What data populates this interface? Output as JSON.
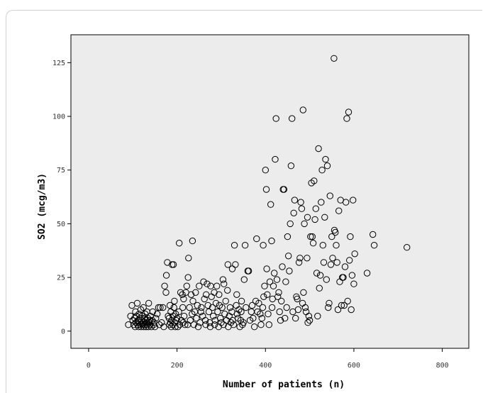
{
  "chart_data": {
    "type": "scatter",
    "xlabel": "Number of patients (n)",
    "ylabel": "SO2 (mcg/m3)",
    "xlim": [
      -40,
      860
    ],
    "ylim": [
      -8,
      138
    ],
    "xticks": [
      0,
      200,
      400,
      600,
      800
    ],
    "yticks": [
      0,
      25,
      50,
      75,
      100,
      125
    ],
    "grid": false,
    "plot_background": "#ececec",
    "marker_color": "#000000",
    "marker": "hollow-circle",
    "points": [
      [
        90,
        3
      ],
      [
        95,
        7
      ],
      [
        98,
        12
      ],
      [
        100,
        5
      ],
      [
        102,
        3
      ],
      [
        104,
        6
      ],
      [
        105,
        2
      ],
      [
        106,
        9
      ],
      [
        107,
        4
      ],
      [
        108,
        7
      ],
      [
        110,
        13
      ],
      [
        111,
        3
      ],
      [
        112,
        5
      ],
      [
        113,
        2
      ],
      [
        114,
        8
      ],
      [
        115,
        4
      ],
      [
        116,
        6
      ],
      [
        117,
        3
      ],
      [
        118,
        10
      ],
      [
        119,
        2
      ],
      [
        120,
        5
      ],
      [
        121,
        7
      ],
      [
        122,
        3
      ],
      [
        123,
        4
      ],
      [
        124,
        11
      ],
      [
        125,
        2
      ],
      [
        126,
        6
      ],
      [
        127,
        3
      ],
      [
        128,
        8
      ],
      [
        129,
        5
      ],
      [
        130,
        2
      ],
      [
        131,
        4
      ],
      [
        132,
        9
      ],
      [
        133,
        3
      ],
      [
        134,
        6
      ],
      [
        135,
        2
      ],
      [
        136,
        13
      ],
      [
        137,
        4
      ],
      [
        138,
        5
      ],
      [
        139,
        3
      ],
      [
        140,
        7
      ],
      [
        142,
        2
      ],
      [
        144,
        5
      ],
      [
        145,
        9
      ],
      [
        147,
        3
      ],
      [
        148,
        4
      ],
      [
        150,
        2
      ],
      [
        152,
        6
      ],
      [
        155,
        8
      ],
      [
        158,
        11
      ],
      [
        160,
        3
      ],
      [
        162,
        11
      ],
      [
        165,
        4
      ],
      [
        168,
        11
      ],
      [
        170,
        2
      ],
      [
        172,
        21
      ],
      [
        175,
        18
      ],
      [
        176,
        26
      ],
      [
        178,
        32
      ],
      [
        180,
        7
      ],
      [
        182,
        6
      ],
      [
        183,
        3
      ],
      [
        184,
        12
      ],
      [
        185,
        4
      ],
      [
        186,
        9
      ],
      [
        187,
        2
      ],
      [
        188,
        5
      ],
      [
        189,
        31
      ],
      [
        190,
        3
      ],
      [
        191,
        7
      ],
      [
        192,
        31
      ],
      [
        193,
        11
      ],
      [
        194,
        14
      ],
      [
        195,
        4
      ],
      [
        196,
        2
      ],
      [
        197,
        8
      ],
      [
        198,
        5
      ],
      [
        200,
        6
      ],
      [
        202,
        2
      ],
      [
        204,
        9
      ],
      [
        205,
        41
      ],
      [
        206,
        3
      ],
      [
        208,
        18
      ],
      [
        210,
        5
      ],
      [
        212,
        17
      ],
      [
        213,
        11
      ],
      [
        214,
        4
      ],
      [
        215,
        15
      ],
      [
        216,
        7
      ],
      [
        218,
        3
      ],
      [
        220,
        18
      ],
      [
        222,
        21
      ],
      [
        224,
        3
      ],
      [
        225,
        25
      ],
      [
        226,
        34
      ],
      [
        228,
        11
      ],
      [
        230,
        5
      ],
      [
        232,
        17
      ],
      [
        234,
        8
      ],
      [
        235,
        42
      ],
      [
        236,
        14
      ],
      [
        238,
        3
      ],
      [
        240,
        9
      ],
      [
        242,
        18
      ],
      [
        244,
        6
      ],
      [
        246,
        12
      ],
      [
        248,
        2
      ],
      [
        250,
        21
      ],
      [
        252,
        4
      ],
      [
        254,
        9
      ],
      [
        255,
        11
      ],
      [
        258,
        7
      ],
      [
        260,
        23
      ],
      [
        262,
        15
      ],
      [
        264,
        5
      ],
      [
        265,
        3
      ],
      [
        266,
        17
      ],
      [
        268,
        22
      ],
      [
        270,
        12
      ],
      [
        272,
        9
      ],
      [
        274,
        4
      ],
      [
        275,
        2
      ],
      [
        276,
        21
      ],
      [
        278,
        16
      ],
      [
        280,
        11
      ],
      [
        282,
        7
      ],
      [
        284,
        18
      ],
      [
        285,
        3
      ],
      [
        286,
        5
      ],
      [
        288,
        13
      ],
      [
        290,
        21
      ],
      [
        292,
        9
      ],
      [
        294,
        2
      ],
      [
        295,
        17
      ],
      [
        296,
        12
      ],
      [
        298,
        6
      ],
      [
        300,
        4
      ],
      [
        302,
        11
      ],
      [
        304,
        24
      ],
      [
        305,
        3
      ],
      [
        306,
        22
      ],
      [
        308,
        8
      ],
      [
        310,
        14
      ],
      [
        312,
        5
      ],
      [
        314,
        19
      ],
      [
        315,
        31
      ],
      [
        316,
        2
      ],
      [
        318,
        7
      ],
      [
        320,
        11
      ],
      [
        322,
        4
      ],
      [
        324,
        9
      ],
      [
        325,
        29
      ],
      [
        326,
        5
      ],
      [
        328,
        3
      ],
      [
        330,
        40
      ],
      [
        332,
        31
      ],
      [
        334,
        12
      ],
      [
        335,
        17
      ],
      [
        336,
        8
      ],
      [
        338,
        6
      ],
      [
        340,
        10
      ],
      [
        342,
        2
      ],
      [
        344,
        5
      ],
      [
        345,
        9
      ],
      [
        346,
        14
      ],
      [
        348,
        3
      ],
      [
        350,
        4
      ],
      [
        352,
        24
      ],
      [
        354,
        40
      ],
      [
        356,
        11
      ],
      [
        360,
        28
      ],
      [
        362,
        28
      ],
      [
        365,
        5
      ],
      [
        368,
        9
      ],
      [
        370,
        12
      ],
      [
        372,
        6
      ],
      [
        375,
        2
      ],
      [
        378,
        14
      ],
      [
        380,
        43
      ],
      [
        382,
        9
      ],
      [
        385,
        13
      ],
      [
        388,
        8
      ],
      [
        390,
        3
      ],
      [
        392,
        6
      ],
      [
        394,
        11
      ],
      [
        395,
        40
      ],
      [
        396,
        16
      ],
      [
        398,
        21
      ],
      [
        400,
        75
      ],
      [
        402,
        66
      ],
      [
        403,
        29
      ],
      [
        404,
        17
      ],
      [
        406,
        8
      ],
      [
        408,
        3
      ],
      [
        410,
        23
      ],
      [
        412,
        59
      ],
      [
        414,
        42
      ],
      [
        415,
        11
      ],
      [
        416,
        15
      ],
      [
        418,
        21
      ],
      [
        420,
        27
      ],
      [
        422,
        80
      ],
      [
        424,
        99
      ],
      [
        426,
        24
      ],
      [
        428,
        16
      ],
      [
        430,
        18
      ],
      [
        432,
        9
      ],
      [
        434,
        5
      ],
      [
        436,
        14
      ],
      [
        438,
        30
      ],
      [
        440,
        66
      ],
      [
        442,
        66
      ],
      [
        444,
        6
      ],
      [
        446,
        23
      ],
      [
        448,
        11
      ],
      [
        450,
        44
      ],
      [
        452,
        35
      ],
      [
        454,
        28
      ],
      [
        456,
        50
      ],
      [
        458,
        77
      ],
      [
        460,
        99
      ],
      [
        462,
        9
      ],
      [
        464,
        55
      ],
      [
        466,
        61
      ],
      [
        468,
        6
      ],
      [
        470,
        16
      ],
      [
        472,
        15
      ],
      [
        474,
        10
      ],
      [
        476,
        32
      ],
      [
        478,
        34
      ],
      [
        480,
        60
      ],
      [
        482,
        57
      ],
      [
        484,
        13
      ],
      [
        485,
        103
      ],
      [
        486,
        18
      ],
      [
        488,
        50
      ],
      [
        490,
        11
      ],
      [
        492,
        9
      ],
      [
        494,
        34
      ],
      [
        495,
        53
      ],
      [
        496,
        4
      ],
      [
        498,
        7
      ],
      [
        500,
        5
      ],
      [
        502,
        44
      ],
      [
        504,
        69
      ],
      [
        506,
        44
      ],
      [
        508,
        41
      ],
      [
        510,
        70
      ],
      [
        512,
        52
      ],
      [
        514,
        57
      ],
      [
        516,
        27
      ],
      [
        518,
        7
      ],
      [
        520,
        85
      ],
      [
        522,
        20
      ],
      [
        524,
        26
      ],
      [
        526,
        60
      ],
      [
        528,
        75
      ],
      [
        530,
        40
      ],
      [
        532,
        32
      ],
      [
        534,
        53
      ],
      [
        536,
        80
      ],
      [
        538,
        24
      ],
      [
        540,
        77
      ],
      [
        542,
        11
      ],
      [
        544,
        13
      ],
      [
        546,
        63
      ],
      [
        548,
        31
      ],
      [
        550,
        44
      ],
      [
        552,
        34
      ],
      [
        555,
        127
      ],
      [
        556,
        47
      ],
      [
        558,
        46
      ],
      [
        560,
        40
      ],
      [
        562,
        32
      ],
      [
        564,
        10
      ],
      [
        566,
        56
      ],
      [
        568,
        23
      ],
      [
        570,
        61
      ],
      [
        572,
        12
      ],
      [
        574,
        25
      ],
      [
        576,
        25
      ],
      [
        578,
        12
      ],
      [
        580,
        30
      ],
      [
        582,
        60
      ],
      [
        584,
        99
      ],
      [
        586,
        14
      ],
      [
        588,
        102
      ],
      [
        590,
        33
      ],
      [
        592,
        44
      ],
      [
        594,
        10
      ],
      [
        596,
        26
      ],
      [
        598,
        61
      ],
      [
        600,
        22
      ],
      [
        602,
        36
      ],
      [
        630,
        27
      ],
      [
        643,
        45
      ],
      [
        646,
        40
      ],
      [
        720,
        39
      ]
    ]
  }
}
